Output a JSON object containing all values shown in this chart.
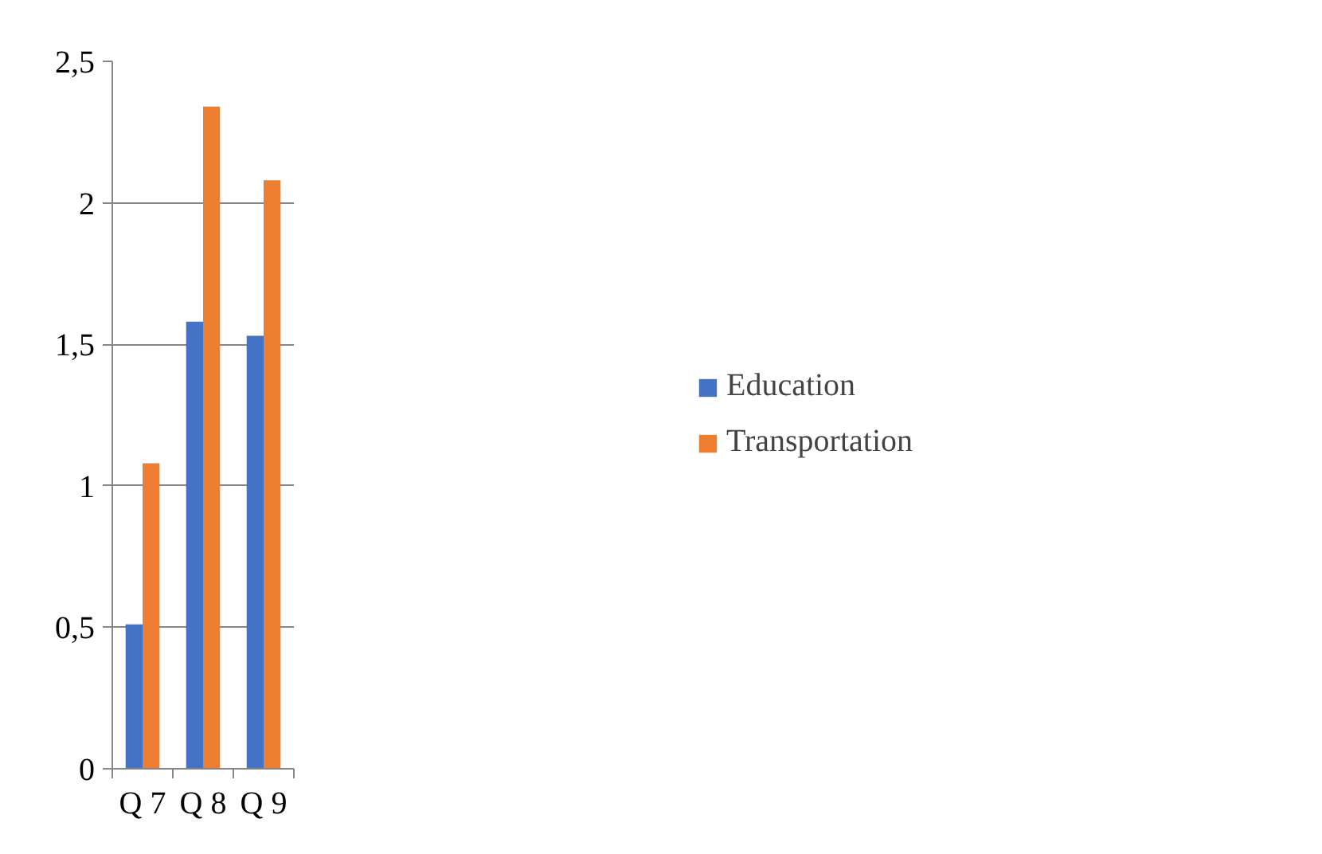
{
  "chart_data": {
    "type": "bar",
    "categories": [
      "Q 7",
      "Q 8",
      "Q 9"
    ],
    "series": [
      {
        "name": "Education",
        "color": "#4472c4",
        "values": [
          0.51,
          1.58,
          1.53
        ]
      },
      {
        "name": "Transportation",
        "color": "#ed7d31",
        "values": [
          1.08,
          2.34,
          2.08
        ]
      }
    ],
    "ylim": [
      0,
      2.5
    ],
    "yticks": [
      0,
      {
        "value": 0.5,
        "label": "0,5"
      },
      1,
      {
        "value": 1.5,
        "label": "1,5"
      },
      2,
      {
        "value": 2.5,
        "label": "2,5"
      }
    ],
    "grid": "y",
    "legend": "right"
  }
}
